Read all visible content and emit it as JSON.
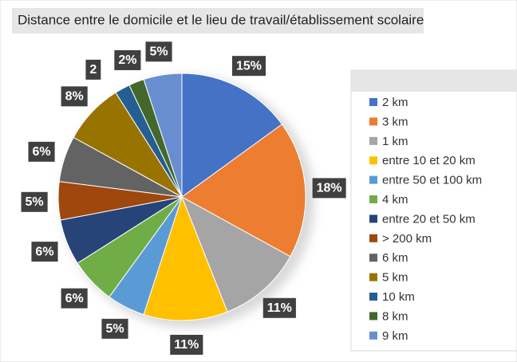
{
  "chart_data": {
    "type": "pie",
    "title": "Distance entre le domicile et le lieu de travail/établissement scolaire",
    "categories": [
      "2 km",
      "3 km",
      "1 km",
      "entre 10 et 20 km",
      "entre 50 et 100 km",
      "4 km",
      "entre 20 et 50 km",
      "> 200 km",
      "6 km",
      "5 km",
      "10 km",
      "8 km",
      "9 km"
    ],
    "values": [
      15,
      18,
      11,
      11,
      5,
      6,
      6,
      5,
      6,
      8,
      2,
      2,
      5
    ],
    "value_labels": [
      "15%",
      "18%",
      "11%",
      "11%",
      "5%",
      "6%",
      "6%",
      "5%",
      "6%",
      "8%",
      "2",
      "2%",
      "5%"
    ],
    "colors": [
      "#4472c4",
      "#ed7d31",
      "#a5a5a5",
      "#ffc000",
      "#5b9bd5",
      "#70ad47",
      "#264478",
      "#9e480e",
      "#636363",
      "#997300",
      "#255e91",
      "#43682b",
      "#698ed0"
    ],
    "legend": "right"
  }
}
